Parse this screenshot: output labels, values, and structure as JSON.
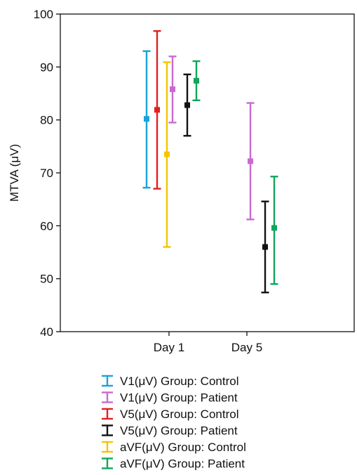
{
  "chart_data": {
    "type": "errorbar",
    "ylabel": "MTVA (μV)",
    "xlabel": "",
    "ylim": [
      40,
      100
    ],
    "yticks": [
      40,
      50,
      60,
      70,
      80,
      90,
      100
    ],
    "categories": [
      "Day 1",
      "Day 5"
    ],
    "grid": false,
    "legend_position": "bottom",
    "series": [
      {
        "name": "V1(μV)  Group: Control",
        "color": "#1aa3d9",
        "points": [
          {
            "category": "Day 1",
            "mean": 80.2,
            "upper": 93.0,
            "lower": 67.2
          }
        ]
      },
      {
        "name": "V1(μV)  Group: Patient",
        "color": "#c96ad2",
        "points": [
          {
            "category": "Day 1",
            "mean": 85.8,
            "upper": 92.0,
            "lower": 79.5
          },
          {
            "category": "Day 5",
            "mean": 72.2,
            "upper": 83.2,
            "lower": 61.2
          }
        ]
      },
      {
        "name": "V5(μV)  Group: Control",
        "color": "#e02020",
        "points": [
          {
            "category": "Day 1",
            "mean": 81.9,
            "upper": 96.8,
            "lower": 67.0
          }
        ]
      },
      {
        "name": "V5(μV)  Group: Patient",
        "color": "#111111",
        "points": [
          {
            "category": "Day 1",
            "mean": 82.8,
            "upper": 88.6,
            "lower": 77.0
          },
          {
            "category": "Day 5",
            "mean": 56.0,
            "upper": 64.6,
            "lower": 47.4
          }
        ]
      },
      {
        "name": "aVF(μV)  Group: Control",
        "color": "#f5c400",
        "points": [
          {
            "category": "Day 1",
            "mean": 73.5,
            "upper": 90.9,
            "lower": 56.0
          }
        ]
      },
      {
        "name": "aVF(μV)  Group: Patient",
        "color": "#12a55b",
        "points": [
          {
            "category": "Day 1",
            "mean": 87.4,
            "upper": 91.1,
            "lower": 83.7
          },
          {
            "category": "Day 5",
            "mean": 59.6,
            "upper": 69.3,
            "lower": 49.0
          }
        ]
      }
    ]
  }
}
